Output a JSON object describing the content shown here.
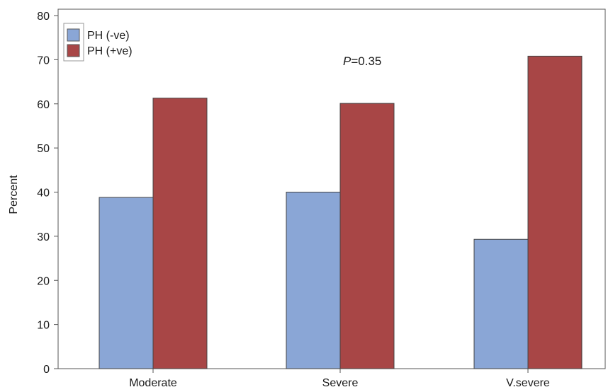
{
  "chart_data": {
    "type": "bar",
    "categories": [
      "Moderate",
      "Severe",
      "V.severe"
    ],
    "series": [
      {
        "name": "PH (-ve)",
        "color": "#8aa6d6",
        "values": [
          38.8,
          40.0,
          29.3
        ]
      },
      {
        "name": "PH (+ve)",
        "color": "#a84646",
        "values": [
          61.3,
          60.1,
          70.8
        ]
      }
    ],
    "title": "",
    "xlabel": "",
    "ylabel": "Percent",
    "ylim": [
      0,
      80
    ],
    "yticks": [
      0,
      10,
      20,
      30,
      40,
      50,
      60,
      70,
      80
    ],
    "legend_position": "top-left",
    "grid": false,
    "annotation": {
      "prefix": "P",
      "text": "=0.35"
    }
  }
}
